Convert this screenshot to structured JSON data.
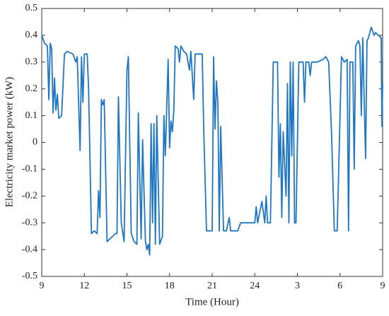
{
  "chart_data": {
    "type": "line",
    "x_label": "Time (Hour)",
    "y_label": "Electricity market power (kW)",
    "xlim": [
      9,
      33
    ],
    "ylim": [
      -0.5,
      0.5
    ],
    "xticks": [
      9,
      12,
      15,
      18,
      21,
      24,
      {
        "value": 27,
        "label": "3"
      },
      {
        "value": 30,
        "label": "6"
      },
      {
        "value": 33,
        "label": "9"
      }
    ],
    "yticks": [
      -0.5,
      -0.4,
      -0.3,
      -0.2,
      -0.1,
      0,
      0.1,
      0.2,
      0.3,
      0.4,
      0.5
    ],
    "series": [
      {
        "color": "#1f77c4",
        "x": [
          9.0,
          9.2,
          9.4,
          9.5,
          9.6,
          9.7,
          9.8,
          9.9,
          10.0,
          10.1,
          10.2,
          10.4,
          10.6,
          10.8,
          11.2,
          11.4,
          11.5,
          11.7,
          11.8,
          11.9,
          12.0,
          12.2,
          12.3,
          12.5,
          12.7,
          12.9,
          13.0,
          13.1,
          13.2,
          13.3,
          13.4,
          13.6,
          13.8,
          14.0,
          14.2,
          14.3,
          14.4,
          14.6,
          14.8,
          15.0,
          15.1,
          15.3,
          15.5,
          15.7,
          15.8,
          16.0,
          16.1,
          16.3,
          16.4,
          16.5,
          16.6,
          16.7,
          16.8,
          16.9,
          17.0,
          17.1,
          17.3,
          17.5,
          17.6,
          17.7,
          17.8,
          17.9,
          18.0,
          18.1,
          18.2,
          18.3,
          18.4,
          18.6,
          18.7,
          18.8,
          19.0,
          19.2,
          19.4,
          19.5,
          19.7,
          19.8,
          20.0,
          20.3,
          20.4,
          20.6,
          21.0,
          21.1,
          21.2,
          21.3,
          21.4,
          21.5,
          21.6,
          21.8,
          22.0,
          22.2,
          22.3,
          22.8,
          23.0,
          23.5,
          24.0,
          24.1,
          24.2,
          24.5,
          24.7,
          24.8,
          24.9,
          25.1,
          25.3,
          25.6,
          25.7,
          25.8,
          25.9,
          26.0,
          26.2,
          26.3,
          26.4,
          26.5,
          26.6,
          26.7,
          26.8,
          26.9,
          27.1,
          27.4,
          27.5,
          27.6,
          27.8,
          27.9,
          28.0,
          28.4,
          28.8,
          29.0,
          29.2,
          29.4,
          29.6,
          29.8,
          29.9,
          30.1,
          30.3,
          30.5,
          30.6,
          30.7,
          30.9,
          31.0,
          31.1,
          31.3,
          31.4,
          31.5,
          31.6,
          31.8,
          31.9,
          32.0,
          32.2,
          32.4,
          32.5,
          32.7,
          32.9,
          32.95,
          33.0
        ],
        "values": [
          0.4,
          0.37,
          0.36,
          0.16,
          0.37,
          0.35,
          0.11,
          0.24,
          0.12,
          0.18,
          0.09,
          0.1,
          0.33,
          0.34,
          0.33,
          0.3,
          0.32,
          -0.03,
          0.32,
          0.15,
          0.33,
          0.33,
          0.2,
          -0.34,
          -0.33,
          -0.34,
          -0.18,
          -0.28,
          0.16,
          0.14,
          0.16,
          -0.37,
          -0.36,
          -0.35,
          -0.34,
          -0.34,
          0.17,
          -0.3,
          -0.37,
          0.27,
          0.32,
          -0.34,
          -0.37,
          -0.38,
          0.11,
          -0.36,
          0.01,
          -0.37,
          -0.4,
          -0.38,
          -0.42,
          0.07,
          -0.3,
          0.07,
          -0.38,
          0.1,
          -0.38,
          -0.35,
          0.1,
          -0.05,
          0.13,
          0.31,
          -0.02,
          0.08,
          0.04,
          0.12,
          0.36,
          0.35,
          0.3,
          0.36,
          0.34,
          0.33,
          0.27,
          0.34,
          0.16,
          0.33,
          0.33,
          0.33,
          0.06,
          -0.33,
          -0.33,
          0.32,
          0.05,
          0.23,
          0.15,
          -0.33,
          0.06,
          -0.33,
          -0.33,
          -0.28,
          -0.33,
          -0.33,
          -0.3,
          -0.3,
          -0.3,
          -0.24,
          -0.3,
          -0.22,
          -0.3,
          -0.2,
          -0.3,
          -0.3,
          0.3,
          0.3,
          -0.13,
          0.07,
          -0.28,
          0.04,
          -0.2,
          0.22,
          -0.3,
          0.3,
          -0.05,
          0.3,
          -0.3,
          -0.3,
          0.3,
          0.3,
          0.15,
          0.3,
          0.3,
          0.25,
          0.3,
          0.3,
          0.31,
          0.32,
          0.3,
          0.04,
          -0.33,
          -0.33,
          -0.12,
          0.32,
          0.3,
          0.31,
          -0.33,
          0.3,
          0.3,
          -0.1,
          0.36,
          0.38,
          0.36,
          0.1,
          0.39,
          -0.06,
          0.38,
          0.39,
          0.43,
          0.4,
          0.41,
          0.4,
          0.39,
          0.06,
          0.22
        ]
      }
    ]
  }
}
